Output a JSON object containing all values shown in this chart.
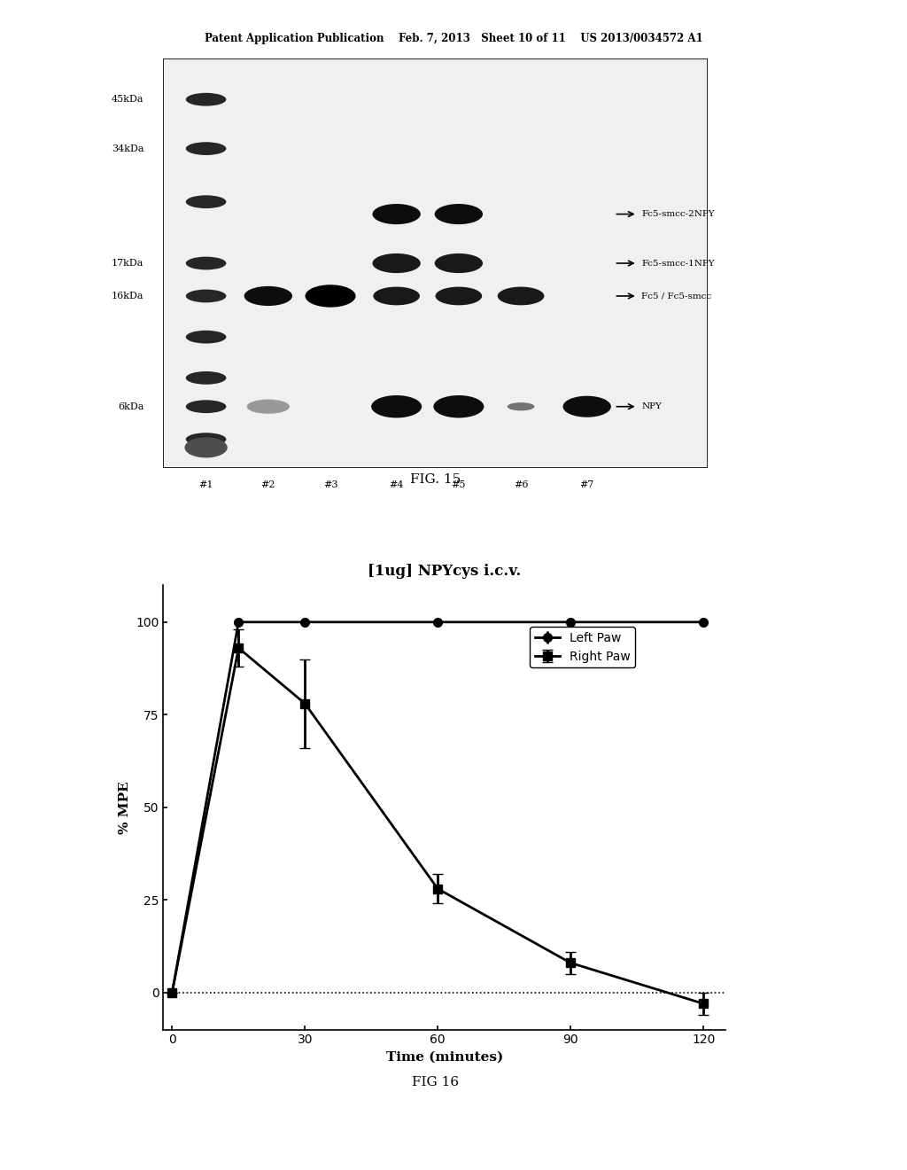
{
  "header_text": "Patent Application Publication    Feb. 7, 2013   Sheet 10 of 11    US 2013/0034572 A1",
  "fig15_label": "FIG. 15",
  "fig16_label": "FIG 16",
  "gel_labels_left": [
    "45kDa",
    "34kDa",
    "17kDa",
    "16kDa",
    "6kDa"
  ],
  "gel_labels_right": [
    "Fc5-smcc-2NPY",
    "Fc5-smcc-1NPY",
    "Fc5 / Fc5-smcc",
    "NPY"
  ],
  "lane_labels": [
    "#1",
    "#2",
    "#3",
    "#4",
    "#5",
    "#6",
    "#7"
  ],
  "plot_title": "[1ug] NPYcys i.c.v.",
  "xlabel": "Time (minutes)",
  "ylabel": "% MPE",
  "left_paw_x": [
    0,
    15,
    30,
    60,
    90,
    120
  ],
  "left_paw_y": [
    0,
    100,
    100,
    100,
    100,
    100
  ],
  "left_paw_err": [
    0,
    0,
    0,
    0,
    0,
    0
  ],
  "right_paw_x": [
    0,
    15,
    30,
    60,
    90,
    120
  ],
  "right_paw_y": [
    0,
    93,
    78,
    28,
    8,
    -3
  ],
  "right_paw_err": [
    0,
    5,
    12,
    4,
    3,
    3
  ],
  "xticks": [
    0,
    30,
    60,
    90,
    120
  ],
  "yticks": [
    0,
    25,
    50,
    75,
    100
  ],
  "ylim": [
    -10,
    110
  ],
  "xlim": [
    -2,
    125
  ],
  "bg_color": "#ffffff",
  "line_color": "#000000",
  "legend_left": "Left Paw",
  "legend_right": "Right Paw"
}
